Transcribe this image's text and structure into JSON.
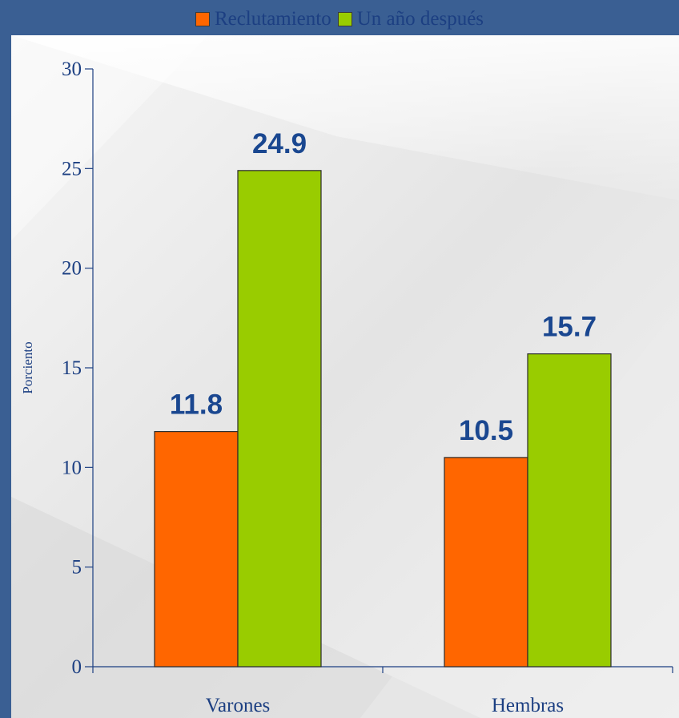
{
  "chart_data": {
    "type": "bar",
    "title": "",
    "ylabel": "Porciento",
    "xlabel": "",
    "ylim": [
      0,
      30
    ],
    "yticks": [
      0,
      5,
      10,
      15,
      20,
      25,
      30
    ],
    "categories": [
      "Varones",
      "Hembras"
    ],
    "series": [
      {
        "name": "Reclutamiento",
        "values": [
          11.8,
          10.5
        ],
        "color": "#ff6600"
      },
      {
        "name": "Un año después",
        "values": [
          24.9,
          15.7
        ],
        "color": "#99cc00"
      }
    ],
    "data_labels": [
      "11.8",
      "24.9",
      "10.5",
      "15.7"
    ],
    "legend_position": "top-center",
    "grid": false
  },
  "colors": {
    "frame": "#3a5f93",
    "text": "#1c3f82",
    "data_label": "#1a4790"
  }
}
